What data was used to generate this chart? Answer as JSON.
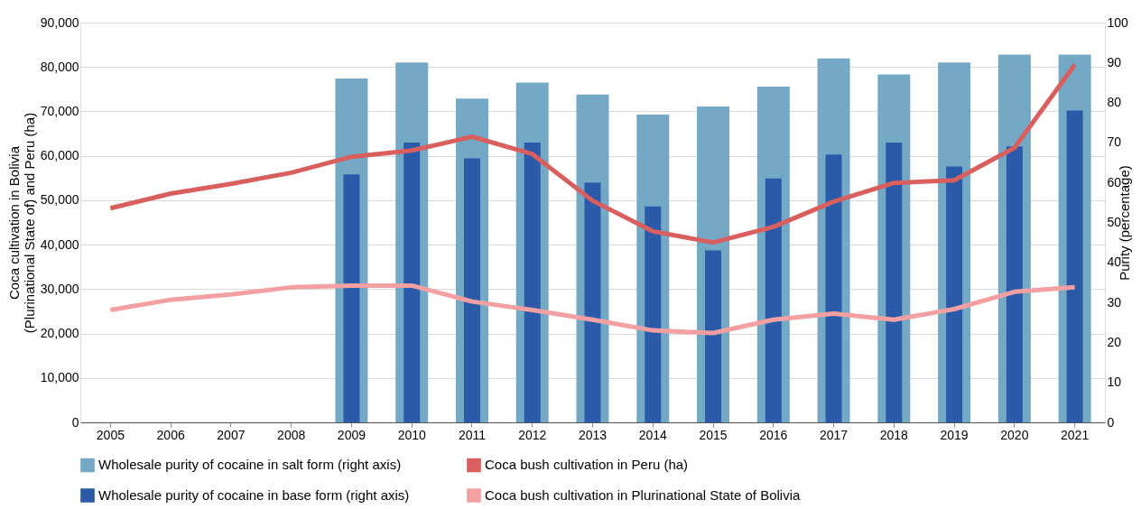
{
  "chart_data": {
    "type": "bar",
    "categories": [
      "2005",
      "2006",
      "2007",
      "2008",
      "2009",
      "2010",
      "2011",
      "2012",
      "2013",
      "2014",
      "2015",
      "2016",
      "2017",
      "2018",
      "2019",
      "2020",
      "2021"
    ],
    "series": [
      {
        "name": "Wholesale purity of cocaine in salt form (right axis)",
        "axis": "y2",
        "color": "#74a9c6",
        "values": [
          null,
          null,
          null,
          null,
          86,
          90,
          81,
          85,
          82,
          77,
          79,
          84,
          91,
          87,
          90,
          92,
          92
        ]
      },
      {
        "name": "Wholesale purity of cocaine in base form (right axis)",
        "axis": "y2",
        "color": "#2a5aa8",
        "values": [
          null,
          null,
          null,
          null,
          62,
          70,
          66,
          70,
          60,
          54,
          43,
          61,
          67,
          70,
          64,
          69,
          78
        ]
      },
      {
        "name": "Coca bush cultivation in Peru (ha)",
        "type": "line",
        "color": "#d95f5e",
        "values": [
          48200,
          51500,
          53700,
          56200,
          59800,
          61200,
          64300,
          60400,
          49900,
          43000,
          40500,
          44000,
          49700,
          53900,
          54500,
          61800,
          80500
        ]
      },
      {
        "name": "Coca bush cultivation in Plurinational State of Bolivia",
        "type": "line",
        "color": "#f4a0a3",
        "values": [
          25300,
          27600,
          28800,
          30400,
          30800,
          30800,
          27200,
          25300,
          23100,
          20700,
          20100,
          23100,
          24500,
          23100,
          25500,
          29400,
          30400
        ]
      }
    ],
    "ylabel": "Coca cultivation in Bolivia\n(Plurinational State of) and Peru (ha)",
    "y2label": "Purity (percentage)",
    "ylim": [
      0,
      90000
    ],
    "yticks": [
      0,
      {
        "value": 10000,
        "label": "10,000"
      },
      {
        "value": 20000,
        "label": "20,000"
      },
      {
        "value": 30000,
        "label": "30,000"
      },
      {
        "value": 40000,
        "label": "40,000"
      },
      {
        "value": 50000,
        "label": "50,000"
      },
      {
        "value": 60000,
        "label": "60,000"
      },
      {
        "value": 70000,
        "label": "70,000"
      },
      {
        "value": 80000,
        "label": "80,000"
      },
      {
        "value": 90000,
        "label": "90,000"
      }
    ],
    "y2lim": [
      0,
      100
    ],
    "y2ticks": [
      0,
      10,
      20,
      30,
      40,
      50,
      60,
      70,
      80,
      90,
      100
    ],
    "grid": "y",
    "legend": "bottom"
  }
}
